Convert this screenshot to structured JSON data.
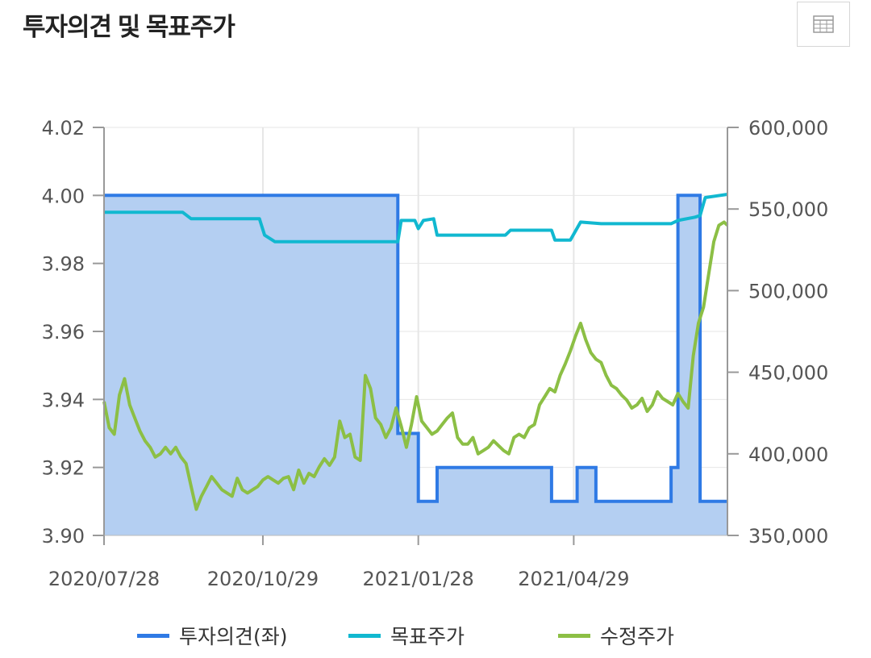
{
  "title": "투자의견 및 목표주가",
  "toolbar": {
    "table_icon": "table-grid-icon"
  },
  "colors": {
    "opinion": "#2f7ae5",
    "opinion_fill": "#b4cff2",
    "target": "#11b8d0",
    "price": "#8cbf45"
  },
  "chart_data": {
    "type": "line",
    "title": "투자의견 및 목표주가",
    "x_tick_labels": [
      "2020/07/28",
      "2020/10/29",
      "2021/01/28",
      "2021/04/29"
    ],
    "y_left": {
      "lim": [
        3.9,
        4.02
      ],
      "ticks": [
        "4.02",
        "4.00",
        "3.98",
        "3.96",
        "3.94",
        "3.92",
        "3.90"
      ]
    },
    "y_right": {
      "lim": [
        350000,
        600000
      ],
      "ticks": [
        "600,000",
        "550,000",
        "500,000",
        "450,000",
        "400,000",
        "350,000"
      ]
    },
    "grid": true,
    "legend_position": "bottom",
    "series": [
      {
        "name": "투자의견(좌)",
        "axis": "left",
        "style": "step-area",
        "x": [
          "2020-07-28",
          "2021-01-16",
          "2021-01-16",
          "2021-01-28",
          "2021-01-28",
          "2021-02-08",
          "2021-02-08",
          "2021-04-16",
          "2021-04-16",
          "2021-05-01",
          "2021-05-01",
          "2021-05-12",
          "2021-05-12",
          "2021-06-25",
          "2021-06-25",
          "2021-06-29",
          "2021-06-29",
          "2021-07-12",
          "2021-07-12",
          "2021-07-28"
        ],
        "values": [
          4.0,
          4.0,
          3.93,
          3.93,
          3.91,
          3.91,
          3.92,
          3.92,
          3.91,
          3.91,
          3.92,
          3.92,
          3.91,
          3.91,
          3.92,
          3.92,
          4.0,
          4.0,
          3.91,
          3.91
        ]
      },
      {
        "name": "목표주가",
        "axis": "right",
        "style": "line",
        "x": [
          "2020-07-28",
          "2020-09-12",
          "2020-09-17",
          "2020-10-27",
          "2020-10-30",
          "2020-11-05",
          "2021-01-14",
          "2021-01-16",
          "2021-01-18",
          "2021-01-26",
          "2021-01-28",
          "2021-01-31",
          "2021-02-06",
          "2021-02-08",
          "2021-02-10",
          "2021-03-20",
          "2021-03-23",
          "2021-04-16",
          "2021-04-18",
          "2021-04-27",
          "2021-05-03",
          "2021-05-15",
          "2021-06-25",
          "2021-06-29",
          "2021-07-09",
          "2021-07-12",
          "2021-07-15",
          "2021-07-28"
        ],
        "values": [
          548000,
          548000,
          544000,
          544000,
          534000,
          530000,
          530000,
          530000,
          543000,
          543000,
          538000,
          543000,
          544000,
          534000,
          534000,
          534000,
          537000,
          537000,
          531000,
          531000,
          542000,
          541000,
          541000,
          543000,
          545000,
          546000,
          557000,
          559000
        ]
      },
      {
        "name": "수정주가",
        "axis": "right",
        "style": "line",
        "x": [
          "2020-07-28",
          "2020-07-31",
          "2020-08-03",
          "2020-08-06",
          "2020-08-09",
          "2020-08-12",
          "2020-08-15",
          "2020-08-18",
          "2020-08-21",
          "2020-08-24",
          "2020-08-27",
          "2020-08-30",
          "2020-09-02",
          "2020-09-05",
          "2020-09-08",
          "2020-09-11",
          "2020-09-14",
          "2020-09-17",
          "2020-09-20",
          "2020-09-23",
          "2020-09-26",
          "2020-09-29",
          "2020-10-02",
          "2020-10-05",
          "2020-10-08",
          "2020-10-11",
          "2020-10-14",
          "2020-10-17",
          "2020-10-20",
          "2020-10-23",
          "2020-10-26",
          "2020-10-29",
          "2020-11-01",
          "2020-11-04",
          "2020-11-07",
          "2020-11-10",
          "2020-11-13",
          "2020-11-16",
          "2020-11-19",
          "2020-11-22",
          "2020-11-25",
          "2020-11-28",
          "2020-12-01",
          "2020-12-04",
          "2020-12-07",
          "2020-12-10",
          "2020-12-13",
          "2020-12-16",
          "2020-12-19",
          "2020-12-22",
          "2020-12-25",
          "2020-12-28",
          "2020-12-31",
          "2021-01-03",
          "2021-01-06",
          "2021-01-09",
          "2021-01-12",
          "2021-01-15",
          "2021-01-18",
          "2021-01-21",
          "2021-01-24",
          "2021-01-27",
          "2021-01-30",
          "2021-02-02",
          "2021-02-05",
          "2021-02-08",
          "2021-02-11",
          "2021-02-14",
          "2021-02-17",
          "2021-02-20",
          "2021-02-23",
          "2021-02-26",
          "2021-03-01",
          "2021-03-04",
          "2021-03-07",
          "2021-03-10",
          "2021-03-13",
          "2021-03-16",
          "2021-03-19",
          "2021-03-22",
          "2021-03-25",
          "2021-03-28",
          "2021-03-31",
          "2021-04-03",
          "2021-04-06",
          "2021-04-09",
          "2021-04-12",
          "2021-04-15",
          "2021-04-18",
          "2021-04-21",
          "2021-04-24",
          "2021-04-27",
          "2021-04-30",
          "2021-05-03",
          "2021-05-06",
          "2021-05-09",
          "2021-05-12",
          "2021-05-15",
          "2021-05-18",
          "2021-05-21",
          "2021-05-24",
          "2021-05-27",
          "2021-05-30",
          "2021-06-02",
          "2021-06-05",
          "2021-06-08",
          "2021-06-11",
          "2021-06-14",
          "2021-06-17",
          "2021-06-20",
          "2021-06-23",
          "2021-06-26",
          "2021-06-29",
          "2021-07-02",
          "2021-07-05",
          "2021-07-08",
          "2021-07-11",
          "2021-07-14",
          "2021-07-17",
          "2021-07-20",
          "2021-07-23",
          "2021-07-26",
          "2021-07-28"
        ],
        "values": [
          432000,
          416000,
          412000,
          436000,
          446000,
          430000,
          422000,
          414000,
          408000,
          404000,
          398000,
          400000,
          404000,
          400000,
          404000,
          398000,
          394000,
          380000,
          366000,
          374000,
          380000,
          386000,
          382000,
          378000,
          376000,
          374000,
          385000,
          378000,
          376000,
          378000,
          380000,
          384000,
          386000,
          384000,
          382000,
          385000,
          386000,
          378000,
          390000,
          382000,
          388000,
          386000,
          392000,
          397000,
          393000,
          398000,
          420000,
          410000,
          412000,
          398000,
          396000,
          448000,
          440000,
          422000,
          418000,
          410000,
          416000,
          428000,
          417000,
          404000,
          418000,
          435000,
          420000,
          416000,
          412000,
          414000,
          418000,
          422000,
          425000,
          410000,
          406000,
          406000,
          410000,
          400000,
          402000,
          404000,
          408000,
          405000,
          402000,
          400000,
          410000,
          412000,
          410000,
          416000,
          418000,
          430000,
          435000,
          440000,
          438000,
          448000,
          455000,
          463000,
          472000,
          480000,
          470000,
          462000,
          458000,
          456000,
          448000,
          442000,
          440000,
          436000,
          433000,
          428000,
          430000,
          434000,
          426000,
          430000,
          438000,
          434000,
          432000,
          430000,
          437000,
          432000,
          428000,
          460000,
          480000,
          490000,
          510000,
          530000,
          540000,
          542000,
          540000
        ]
      }
    ]
  },
  "legend": {
    "items": [
      {
        "label": "투자의견(좌)",
        "color_key": "opinion"
      },
      {
        "label": "목표주가",
        "color_key": "target"
      },
      {
        "label": "수정주가",
        "color_key": "price"
      }
    ]
  }
}
